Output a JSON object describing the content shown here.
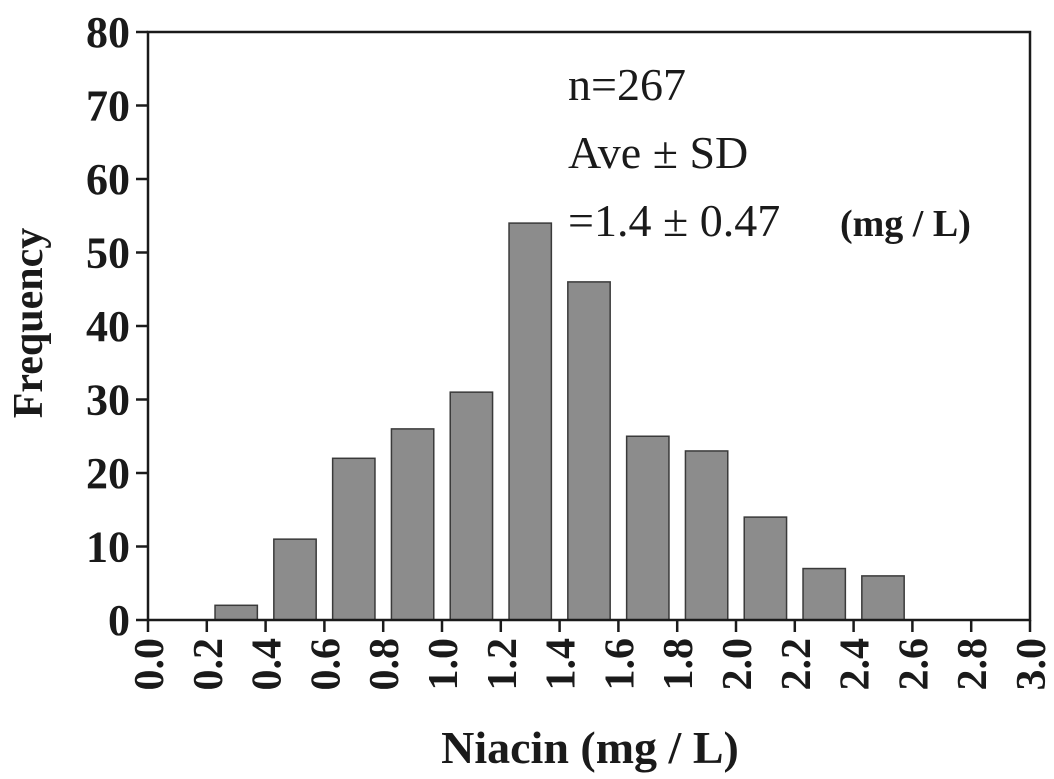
{
  "chart_data": {
    "type": "bar",
    "title": "",
    "xlabel": "Niacin (mg / L)",
    "ylabel": "Frequency",
    "xlim": [
      0.0,
      3.0
    ],
    "ylim": [
      0,
      80
    ],
    "yticks": [
      0,
      10,
      20,
      30,
      40,
      50,
      60,
      70,
      80
    ],
    "xticks": [
      "0.0",
      "0.2",
      "0.4",
      "0.6",
      "0.8",
      "1.0",
      "1.2",
      "1.4",
      "1.6",
      "1.8",
      "2.0",
      "2.2",
      "2.4",
      "2.6",
      "2.8",
      "3.0"
    ],
    "bin_width": 0.2,
    "bins": [
      {
        "x0": 0.0,
        "x1": 0.2,
        "value": 0
      },
      {
        "x0": 0.2,
        "x1": 0.4,
        "value": 2
      },
      {
        "x0": 0.4,
        "x1": 0.6,
        "value": 11
      },
      {
        "x0": 0.6,
        "x1": 0.8,
        "value": 22
      },
      {
        "x0": 0.8,
        "x1": 1.0,
        "value": 26
      },
      {
        "x0": 1.0,
        "x1": 1.2,
        "value": 31
      },
      {
        "x0": 1.2,
        "x1": 1.4,
        "value": 54
      },
      {
        "x0": 1.4,
        "x1": 1.6,
        "value": 46
      },
      {
        "x0": 1.6,
        "x1": 1.8,
        "value": 25
      },
      {
        "x0": 1.8,
        "x1": 2.0,
        "value": 23
      },
      {
        "x0": 2.0,
        "x1": 2.2,
        "value": 14
      },
      {
        "x0": 2.2,
        "x1": 2.4,
        "value": 7
      },
      {
        "x0": 2.4,
        "x1": 2.6,
        "value": 6
      },
      {
        "x0": 2.6,
        "x1": 2.8,
        "value": 0
      },
      {
        "x0": 2.8,
        "x1": 3.0,
        "value": 0
      }
    ],
    "annotations": {
      "line1": "n=267",
      "line2": "Ave ± SD",
      "line3": "=1.4 ± 0.47",
      "unit": "(mg / L)"
    },
    "bar_color": "#8c8c8c",
    "grid": false
  }
}
